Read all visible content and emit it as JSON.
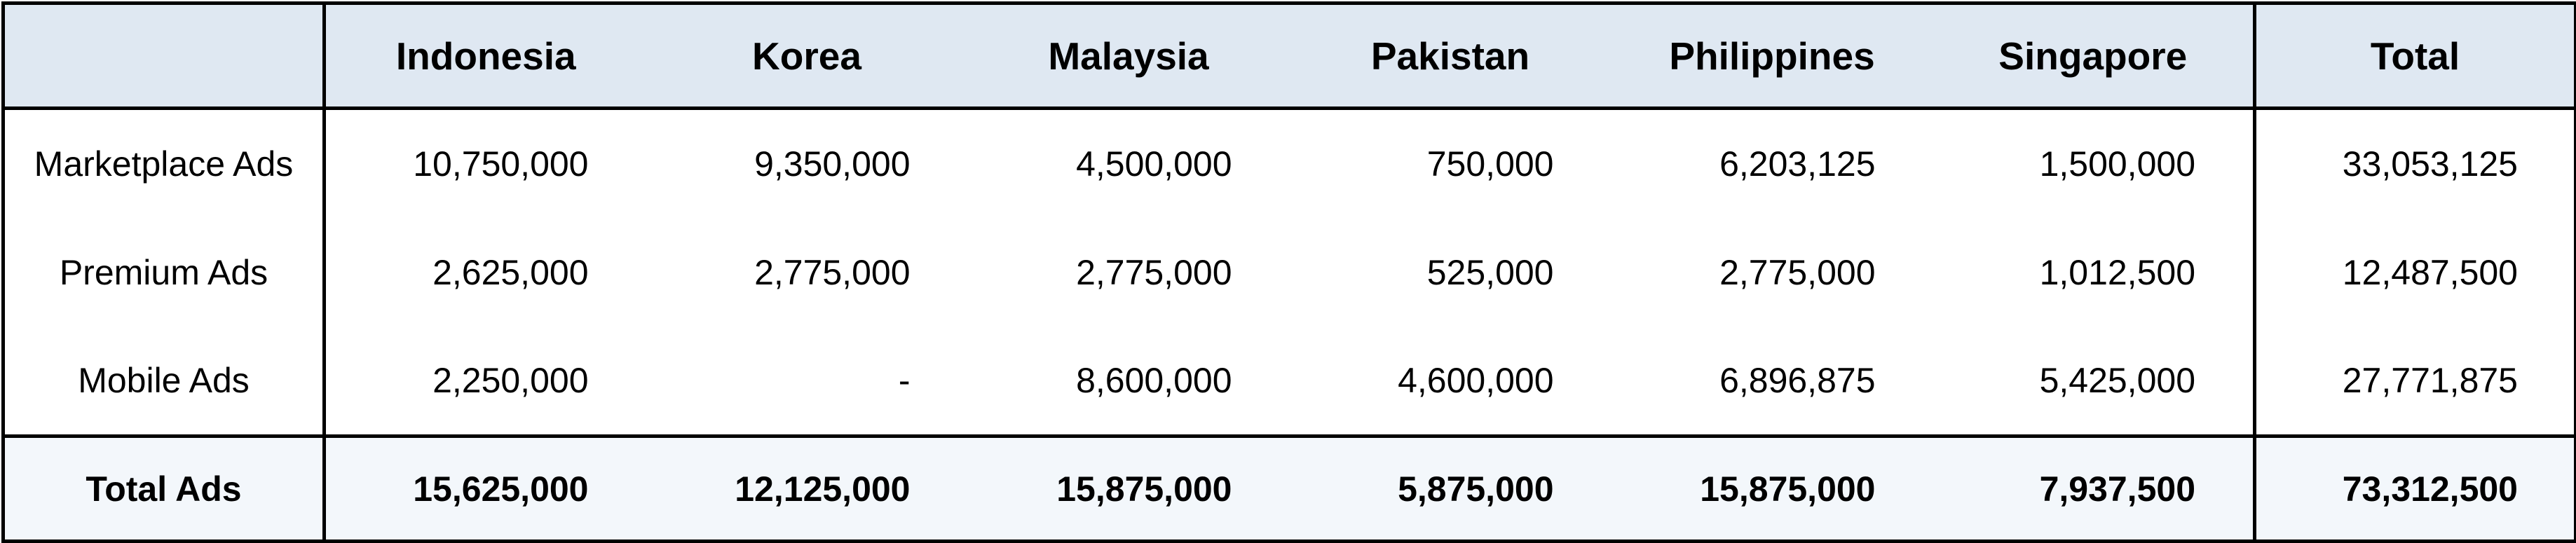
{
  "table": {
    "header": {
      "corner": "",
      "countries": [
        "Indonesia",
        "Korea",
        "Malaysia",
        "Pakistan",
        "Philippines",
        "Singapore"
      ],
      "total": "Total"
    },
    "rows": [
      {
        "label": "Marketplace Ads",
        "values": [
          "10,750,000",
          "9,350,000",
          "4,500,000",
          "750,000",
          "6,203,125",
          "1,500,000"
        ],
        "total": "33,053,125"
      },
      {
        "label": "Premium Ads",
        "values": [
          "2,625,000",
          "2,775,000",
          "2,775,000",
          "525,000",
          "2,775,000",
          "1,012,500"
        ],
        "total": "12,487,500"
      },
      {
        "label": "Mobile Ads",
        "values": [
          "2,250,000",
          "-",
          "8,600,000",
          "4,600,000",
          "6,896,875",
          "5,425,000"
        ],
        "total": "27,771,875"
      }
    ],
    "totals_row": {
      "label": "Total Ads",
      "values": [
        "15,625,000",
        "12,125,000",
        "15,875,000",
        "5,875,000",
        "15,875,000",
        "7,937,500"
      ],
      "total": "73,312,500"
    }
  },
  "colors": {
    "header_bg": "#dfe8f2",
    "totals_bg": "#f3f7fb",
    "border": "#000000"
  }
}
